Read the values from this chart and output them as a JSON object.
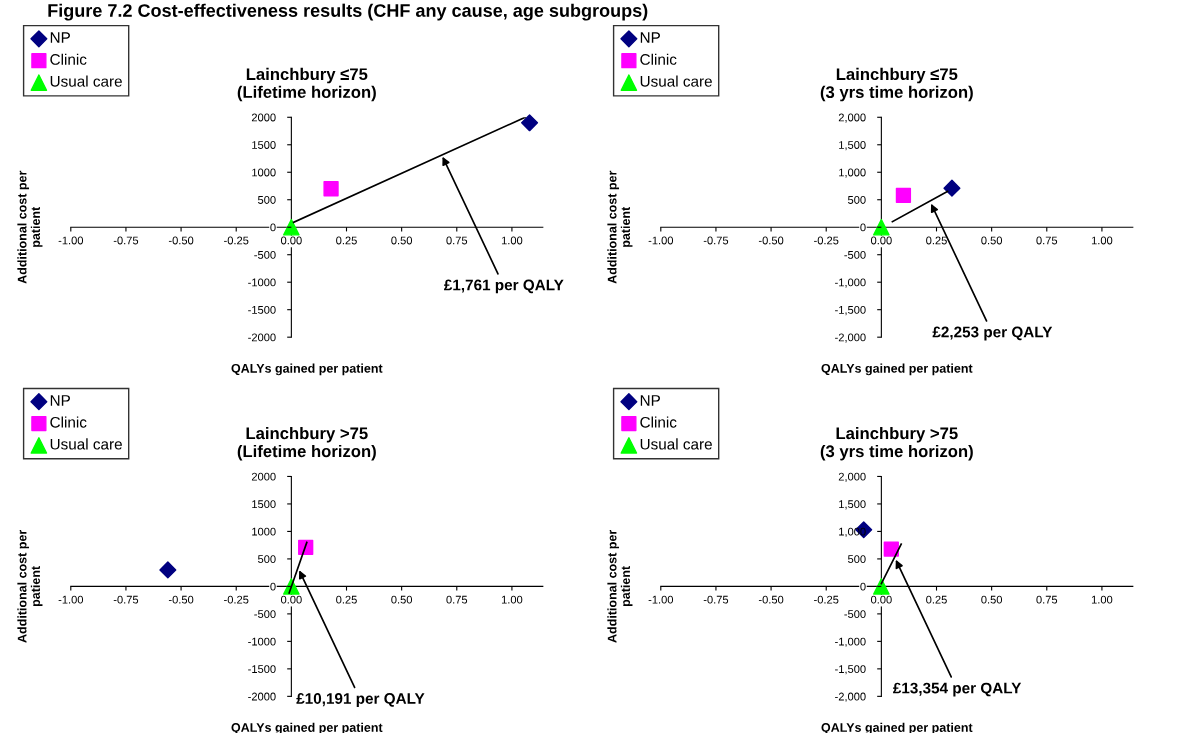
{
  "chart_data": [
    {
      "type": "scatter",
      "title": "Lainchbury ≤75\n(Lifetime horizon)",
      "xlabel": "QALYs gained per patient",
      "ylabel": "Additional cost per\npatient",
      "legend": "top left",
      "xlim": [
        -1,
        1.14
      ],
      "ylim": [
        -2000,
        2000
      ],
      "xticks": [
        {
          "value": -1,
          "label": "-1.00"
        },
        {
          "value": -0.75,
          "label": "-0.75"
        },
        {
          "value": -0.5,
          "label": "-0.50"
        },
        {
          "value": -0.25,
          "label": "-0.25"
        },
        {
          "value": 0,
          "label": "0.00"
        },
        {
          "value": 0.25,
          "label": "0.25"
        },
        {
          "value": 0.5,
          "label": "0.50"
        },
        {
          "value": 0.75,
          "label": "0.75"
        },
        {
          "value": 1,
          "label": "1.00"
        }
      ],
      "yticks": [
        -2000,
        -1500,
        -1000,
        -500,
        0,
        500,
        1000,
        1500,
        2000
      ],
      "series": [
        {
          "name": "NP",
          "color": "#000080",
          "marker": "diamond",
          "x": [
            1.08
          ],
          "values": [
            1900
          ]
        },
        {
          "name": "Clinic",
          "color": "#ff00ff",
          "marker": "square",
          "x": [
            0.18
          ],
          "values": [
            700
          ]
        },
        {
          "name": "Usual care",
          "color": "#00ff00",
          "marker": "triangle",
          "x": [
            0
          ],
          "values": [
            0
          ]
        },
        {
          "type": "line",
          "color": "#000000",
          "marker": "none",
          "x": [
            0.01,
            1.06
          ],
          "values": [
            90,
            2000
          ]
        }
      ],
      "annotations": [
        "Figure 7.2 Cost-effectiveness results (CHF any cause, age subgroups)",
        {
          "text": "£1,761 per QALY",
          "x": 0.68,
          "y": 1330
        }
      ]
    },
    {
      "type": "scatter",
      "title": "Lainchbury ≤75\n(3 yrs time horizon)",
      "xlabel": "QALYs gained per patient",
      "ylabel": "Additional cost per\npatient",
      "legend": "top left",
      "xlim": [
        -1,
        1.14
      ],
      "ylim": [
        -2000,
        2000
      ],
      "xticks": [
        {
          "value": -1,
          "label": "-1.00"
        },
        {
          "value": -0.75,
          "label": "-0.75"
        },
        {
          "value": -0.5,
          "label": "-0.50"
        },
        {
          "value": -0.25,
          "label": "-0.25"
        },
        {
          "value": 0,
          "label": "0.00"
        },
        {
          "value": 0.25,
          "label": "0.25"
        },
        {
          "value": 0.5,
          "label": "0.50"
        },
        {
          "value": 0.75,
          "label": "0.75"
        },
        {
          "value": 1,
          "label": "1.00"
        }
      ],
      "yticks": [
        {
          "value": -2000,
          "label": "-2,000"
        },
        {
          "value": -1500,
          "label": "-1,500"
        },
        {
          "value": -1000,
          "label": "-1,000"
        },
        -500,
        0,
        500,
        {
          "value": 1000,
          "label": "1,000"
        },
        {
          "value": 1500,
          "label": "1,500"
        },
        {
          "value": 2000,
          "label": "2,000"
        }
      ],
      "series": [
        {
          "name": "NP",
          "color": "#000080",
          "marker": "diamond",
          "x": [
            0.32
          ],
          "values": [
            710
          ]
        },
        {
          "name": "Clinic",
          "color": "#ff00ff",
          "marker": "square",
          "x": [
            0.1
          ],
          "values": [
            580
          ]
        },
        {
          "name": "Usual care",
          "color": "#00ff00",
          "marker": "triangle",
          "x": [
            0
          ],
          "values": [
            0
          ]
        },
        {
          "type": "line",
          "color": "#000000",
          "marker": "none",
          "x": [
            0.05,
            0.3
          ],
          "values": [
            100,
            650
          ]
        }
      ],
      "annotations": [
        {
          "text": "£2,253 per QALY",
          "x": 0.22,
          "y": 474
        }
      ]
    },
    {
      "type": "scatter",
      "title": "Lainchbury >75\n(Lifetime horizon)",
      "xlabel": "QALYs gained per patient",
      "ylabel": "Additional cost per\npatient",
      "legend": "top left",
      "xlim": [
        -1,
        1.14
      ],
      "ylim": [
        -2000,
        2000
      ],
      "xticks": [
        {
          "value": -1,
          "label": "-1.00"
        },
        {
          "value": -0.75,
          "label": "-0.75"
        },
        {
          "value": -0.5,
          "label": "-0.50"
        },
        {
          "value": -0.25,
          "label": "-0.25"
        },
        {
          "value": 0,
          "label": "0.00"
        },
        {
          "value": 0.25,
          "label": "0.25"
        },
        {
          "value": 0.5,
          "label": "0.50"
        },
        {
          "value": 0.75,
          "label": "0.75"
        },
        {
          "value": 1,
          "label": "1.00"
        }
      ],
      "yticks": [
        -2000,
        -1500,
        -1000,
        -500,
        0,
        500,
        1000,
        1500,
        2000
      ],
      "series": [
        {
          "name": "NP",
          "color": "#000080",
          "marker": "diamond",
          "x": [
            -0.56
          ],
          "values": [
            300
          ]
        },
        {
          "name": "Clinic",
          "color": "#ff00ff",
          "marker": "square",
          "x": [
            0.065
          ],
          "values": [
            710
          ]
        },
        {
          "name": "Usual care",
          "color": "#00ff00",
          "marker": "triangle",
          "x": [
            0
          ],
          "values": [
            0
          ]
        },
        {
          "type": "line",
          "color": "#000000",
          "marker": "none",
          "x": [
            -0.01,
            0.07
          ],
          "values": [
            -120,
            800
          ]
        }
      ],
      "annotations": [
        {
          "text": "£10,191 per QALY",
          "x": 0.03,
          "y": 340
        }
      ]
    },
    {
      "type": "scatter",
      "title": "Lainchbury >75\n(3 yrs time horizon)",
      "xlabel": "QALYs gained per patient",
      "ylabel": "Additional cost per\npatient",
      "legend": "top left",
      "xlim": [
        -1,
        1.14
      ],
      "ylim": [
        -2000,
        2000
      ],
      "xticks": [
        {
          "value": -1,
          "label": "-1.00"
        },
        {
          "value": -0.75,
          "label": "-0.75"
        },
        {
          "value": -0.5,
          "label": "-0.50"
        },
        {
          "value": -0.25,
          "label": "-0.25"
        },
        {
          "value": 0,
          "label": "0.00"
        },
        {
          "value": 0.25,
          "label": "0.25"
        },
        {
          "value": 0.5,
          "label": "0.50"
        },
        {
          "value": 0.75,
          "label": "0.75"
        },
        {
          "value": 1,
          "label": "1.00"
        }
      ],
      "yticks": [
        {
          "value": -2000,
          "label": "-2,000"
        },
        {
          "value": -1500,
          "label": "-1,500"
        },
        {
          "value": -1000,
          "label": "-1,000"
        },
        -500,
        0,
        500,
        {
          "value": 1000,
          "label": "1,000"
        },
        {
          "value": 1500,
          "label": "1,500"
        },
        {
          "value": 2000,
          "label": "2,000"
        }
      ],
      "series": [
        {
          "name": "NP",
          "color": "#000080",
          "marker": "diamond",
          "x": [
            -0.08
          ],
          "values": [
            1030
          ]
        },
        {
          "name": "Clinic",
          "color": "#ff00ff",
          "marker": "square",
          "x": [
            0.045
          ],
          "values": [
            680
          ]
        },
        {
          "name": "Usual care",
          "color": "#00ff00",
          "marker": "triangle",
          "x": [
            0
          ],
          "values": [
            0
          ]
        },
        {
          "type": "line",
          "color": "#000000",
          "marker": "none",
          "x": [
            0.0,
            0.09
          ],
          "values": [
            50,
            770
          ]
        }
      ],
      "annotations": [
        {
          "text": "£13,354 per QALY",
          "x": 0.06,
          "y": 530
        }
      ]
    }
  ]
}
